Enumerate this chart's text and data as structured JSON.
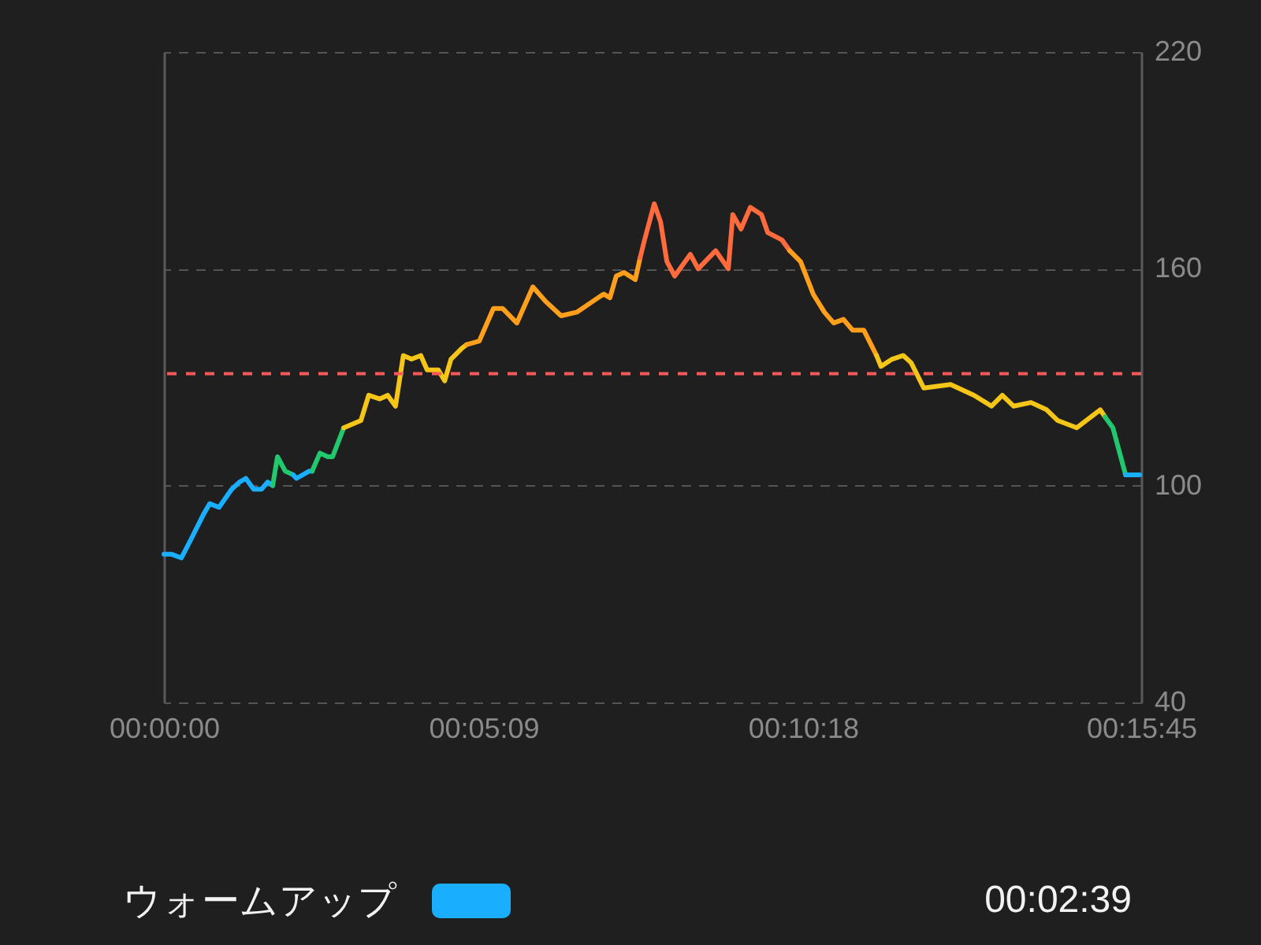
{
  "chart_data": {
    "type": "line",
    "xlim": [
      0,
      0.2625
    ],
    "xticks": [
      {
        "value": 0,
        "label": "00:00:00"
      },
      {
        "value": 0.085833,
        "label": "00:05:09"
      },
      {
        "value": 0.171667,
        "label": "00:10:18"
      },
      {
        "value": 0.2625,
        "label": "00:15:45"
      }
    ],
    "ylim": [
      40,
      220
    ],
    "yticks": [
      40,
      100,
      160,
      220
    ],
    "grid": "y",
    "legend": "bottom",
    "marker": "none",
    "line_style": "solid",
    "ref_lines": [
      {
        "axis": "y",
        "value": 131,
        "color": "#ff5a5a",
        "line_style": "dashed"
      }
    ],
    "annotations": [
      "00:02:39"
    ],
    "series": [
      {
        "name": "ウォームアップ",
        "color": "#1aaeff",
        "x": [
          0,
          0.0021,
          0.0047,
          0.0072,
          0.0106,
          0.0123,
          0.0148,
          0.0182,
          0.0203,
          0.022,
          0.0241,
          0.0262,
          0.0279,
          0.0292
        ],
        "values": [
          81,
          81,
          80,
          85,
          92,
          95,
          94,
          99,
          101,
          102,
          99,
          99,
          101,
          100
        ]
      },
      {
        "color": "#22c86e",
        "x": [
          0.0292,
          0.0305,
          0.0326,
          0.0347
        ],
        "values": [
          100,
          108,
          104,
          103
        ]
      },
      {
        "color": "#1aaeff",
        "x": [
          0.0347,
          0.0356,
          0.039,
          0.0398
        ],
        "values": [
          103,
          102,
          104,
          104
        ]
      },
      {
        "color": "#22c86e",
        "x": [
          0.0398,
          0.0419,
          0.044,
          0.0453,
          0.0483
        ],
        "values": [
          104,
          109,
          108,
          108,
          116
        ]
      },
      {
        "color": "#f5c518",
        "x": [
          0.0483,
          0.0529,
          0.055,
          0.058,
          0.0601,
          0.0622,
          0.0643,
          0.0665,
          0.069,
          0.0707,
          0.0737,
          0.0754,
          0.0771,
          0.08,
          0.0813
        ],
        "values": [
          116,
          118,
          125,
          124,
          125,
          122,
          136,
          135,
          136,
          132,
          132,
          129,
          135,
          138,
          139
        ]
      },
      {
        "color": "#ff9f1c",
        "x": [
          0.0813,
          0.0847,
          0.0885,
          0.091,
          0.0948,
          0.0991,
          0.1025,
          0.1067,
          0.1109,
          0.1152,
          0.1181,
          0.1198,
          0.1215,
          0.1236,
          0.1266,
          0.1279
        ],
        "values": [
          139,
          140,
          149,
          149,
          145,
          155,
          151,
          147,
          148,
          151,
          153,
          152,
          158,
          159,
          157,
          163
        ]
      },
      {
        "color": "#ff6b3d",
        "x": [
          0.1279,
          0.1291,
          0.1317,
          0.1334,
          0.1351,
          0.1372,
          0.1414,
          0.1435,
          0.1482,
          0.1516,
          0.1528,
          0.155,
          0.1575,
          0.1605,
          0.1622,
          0.166,
          0.1681
        ],
        "values": [
          163,
          168,
          178,
          173,
          162,
          158,
          164,
          160,
          165,
          160,
          175,
          171,
          177,
          175,
          170,
          168,
          165
        ]
      },
      {
        "color": "#ff9f1c",
        "x": [
          0.1681,
          0.171,
          0.1744,
          0.1774,
          0.1799,
          0.1825,
          0.185,
          0.188,
          0.1914
        ],
        "values": [
          165,
          162,
          153,
          148,
          145,
          146,
          143,
          143,
          136
        ]
      },
      {
        "color": "#f5c518",
        "x": [
          0.1914,
          0.1926,
          0.1956,
          0.1986,
          0.2007,
          0.2041,
          0.2113,
          0.2176,
          0.2223,
          0.2252,
          0.2282,
          0.2329,
          0.2371,
          0.2401,
          0.2452,
          0.2515,
          0.2528
        ],
        "values": [
          136,
          133,
          135,
          136,
          134,
          127,
          128,
          125,
          122,
          125,
          122,
          123,
          121,
          118,
          116,
          121,
          119
        ]
      },
      {
        "color": "#22c86e",
        "x": [
          0.2528,
          0.2549,
          0.2583
        ],
        "values": [
          119,
          116,
          103
        ]
      },
      {
        "color": "#1aaeff",
        "x": [
          0.2583,
          0.2621
        ],
        "values": [
          103,
          103
        ]
      }
    ]
  }
}
